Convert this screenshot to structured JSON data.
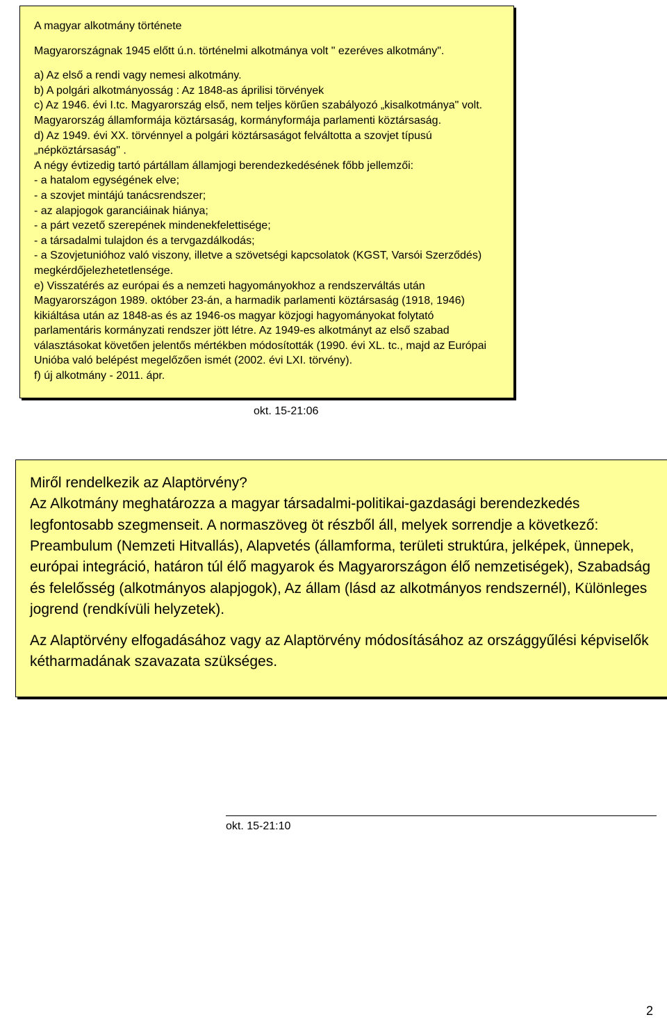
{
  "colors": {
    "box_background": "#ffff99",
    "page_background": "#ffffff",
    "text": "#000000",
    "border": "#000000"
  },
  "box1": {
    "title": "A magyar alkotmány története",
    "intro": "Magyarországnak 1945 előtt ú.n. történelmi alkotmánya volt \" ezeréves alkotmány\".",
    "p_a": "a)  Az első a rendi vagy nemesi alkotmány.",
    "p_b": "b)  A polgári alkotmányosság :   Az 1848-as áprilisi törvények",
    "p_c": "c)  Az 1946. évi I.tc. Magyarország első, nem teljes körűen szabályozó „kisalkotmánya\" volt. Magyarország államformája köztársaság, kormányformája parlamenti köztársaság.",
    "p_d": "d)  Az 1949. évi XX. törvénnyel a polgári köztársaságot felváltotta a szovjet típusú „népköztársaság\" .",
    "p_features_intro": "A négy évtizedig tartó pártállam államjogi berendezkedésének főbb jellemzői:",
    "features": [
      "-   a hatalom egységének  elve;",
      "-   a szovjet mintájú tanácsrendszer;",
      "-   az alapjogok garanciáinak hiánya;",
      "-   a párt vezető szerepének mindenekfelettisége;",
      "-   a társadalmi tulajdon és a tervgazdálkodás;",
      "-   a Szovjetunióhoz való viszony, illetve a szövetségi kapcsolatok (KGST, Varsói Szerződés) megkérdőjelezhetetlensége."
    ],
    "p_e": "e)  Visszatérés az európai és a nemzeti hagyományokhoz a rendszerváltás után   Magyarországon 1989. október 23-án, a harmadik parlamenti köztársaság (1918, 1946) kikiáltása után az 1848-as és az 1946-os  magyar közjogi hagyományokat folytató parlamentáris kormányzati rendszer jött létre. Az 1949-es alkotmányt az első szabad választásokat követően jelentős mértékben módosították (1990. évi XL. tc., majd az Európai Unióba való belépést megelőzően ismét (2002. évi LXI. törvény).",
    "p_f": "f) új alkotmány - 2011. ápr."
  },
  "timestamp1": "okt. 15-21:06",
  "box2": {
    "heading": "Miről rendelkezik az Alaptörvény?",
    "body1": "Az Alkotmány meghatározza a magyar társadalmi-politikai-gazdasági berendezkedés legfontosabb szegmenseit. A normaszöveg öt részből áll, melyek sorrendje a következő: Preambulum (Nemzeti Hitvallás), Alapvetés (államforma, területi struktúra, jelképek, ünnepek, európai integráció, határon túl élő magyarok és Magyarországon élő nemzetiségek), Szabadság és felelősség (alkotmányos alapjogok), Az állam (lásd az alkotmányos rendszernél), Különleges jogrend (rendkívüli helyzetek).",
    "body2": "Az Alaptörvény elfogadásához vagy az Alaptörvény módosításához az országgyűlési képviselők kétharmadának szavazata szükséges."
  },
  "timestamp2": "okt. 15-21:10",
  "page_number": "2"
}
